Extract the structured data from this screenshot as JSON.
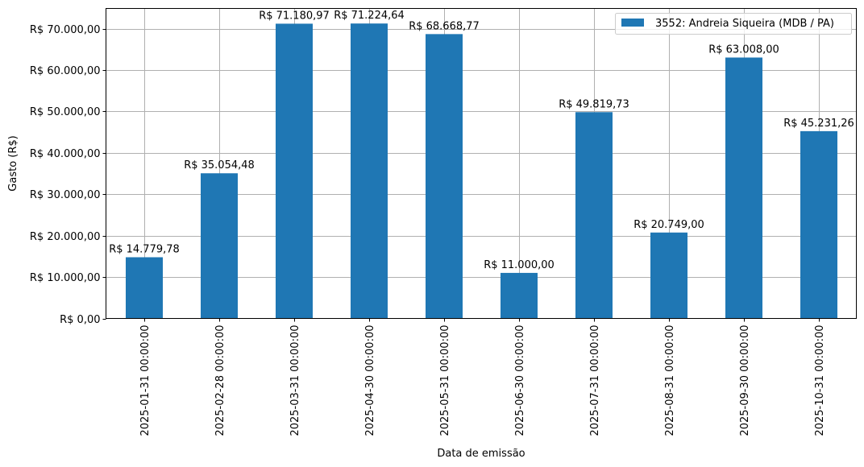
{
  "chart_data": {
    "type": "bar",
    "title": "",
    "xlabel": "Data de emissão",
    "ylabel": "Gasto (R$)",
    "ylim": [
      0,
      75000
    ],
    "grid": true,
    "legend_position": "upper right",
    "categories": [
      "2025-01-31 00:00:00",
      "2025-02-28 00:00:00",
      "2025-03-31 00:00:00",
      "2025-04-30 00:00:00",
      "2025-05-31 00:00:00",
      "2025-06-30 00:00:00",
      "2025-07-31 00:00:00",
      "2025-08-31 00:00:00",
      "2025-09-30 00:00:00",
      "2025-10-31 00:00:00"
    ],
    "series": [
      {
        "name": "3552: Andreia Siqueira (MDB / PA)",
        "color": "#1f77b4",
        "values": [
          14779.78,
          35054.48,
          71180.97,
          71224.64,
          68668.77,
          11000.0,
          49819.73,
          20749.0,
          63008.0,
          45231.26
        ],
        "labels": [
          "R$ 14.779,78",
          "R$ 35.054,48",
          "R$ 71.180,97",
          "R$ 71.224,64",
          "R$ 68.668,77",
          "R$ 11.000,00",
          "R$ 49.819,73",
          "R$ 20.749,00",
          "R$ 63.008,00",
          "R$ 45.231,26"
        ]
      }
    ],
    "yticks": [
      0,
      10000,
      20000,
      30000,
      40000,
      50000,
      60000,
      70000
    ],
    "ytick_labels": [
      "R$ 0,00",
      "R$ 10.000,00",
      "R$ 20.000,00",
      "R$ 30.000,00",
      "R$ 40.000,00",
      "R$ 50.000,00",
      "R$ 60.000,00",
      "R$ 70.000,00"
    ]
  },
  "colors": {
    "bar": "#1f77b4",
    "grid": "#b0b0b0",
    "axes": "#000000",
    "legend_border": "#cccccc"
  }
}
